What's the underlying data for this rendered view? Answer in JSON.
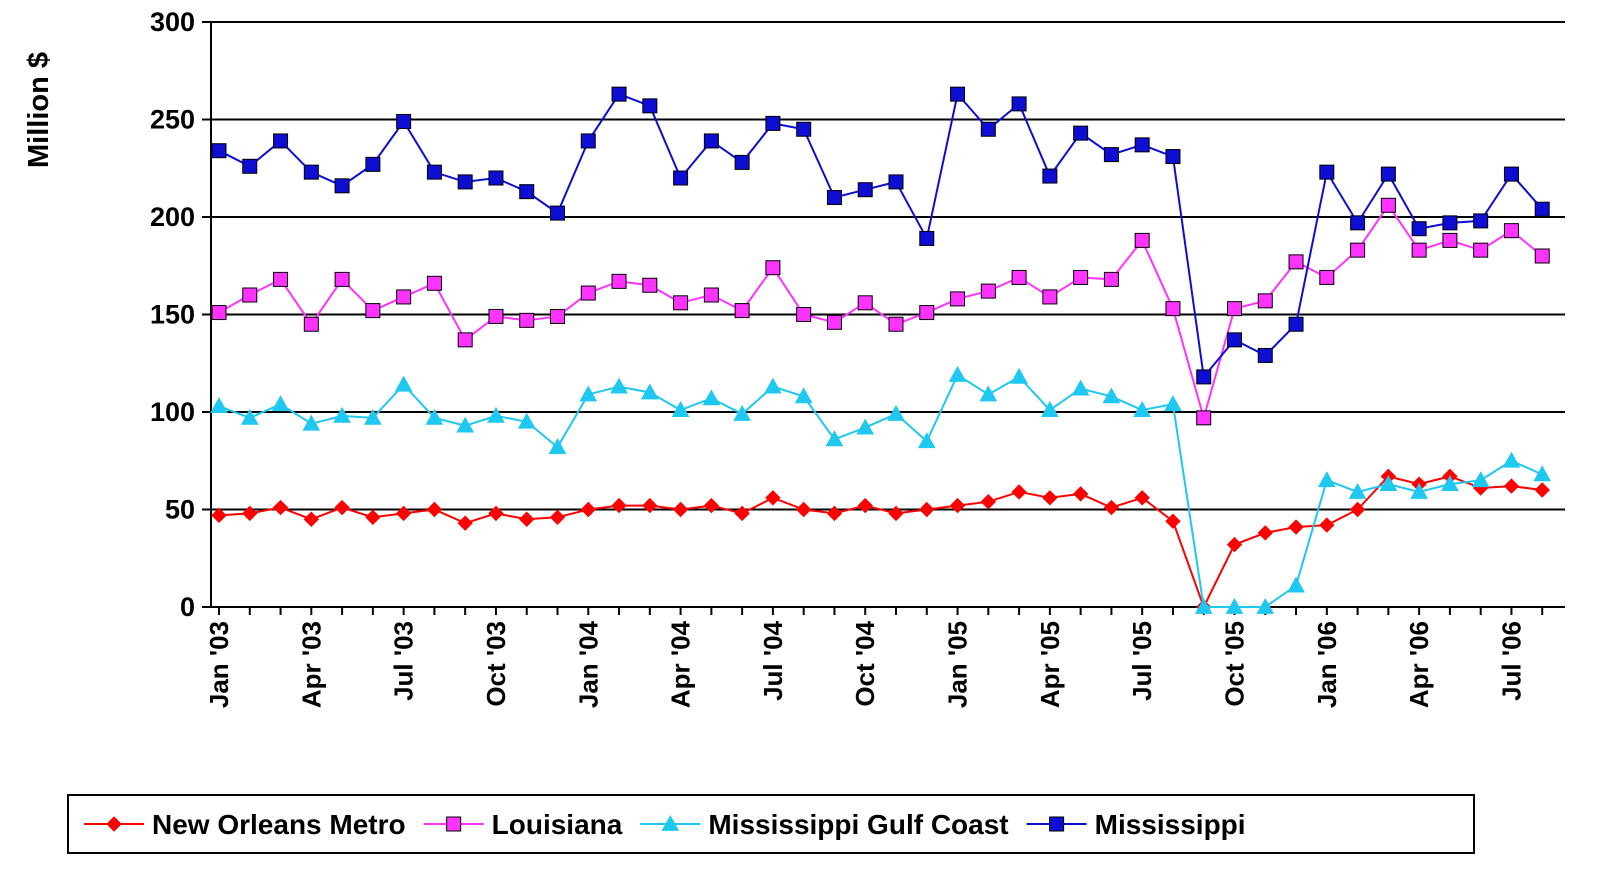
{
  "chart_data": {
    "type": "line",
    "ylabel": "Million $",
    "xlabel": "",
    "ylim": [
      0,
      300
    ],
    "yticks": [
      "0",
      "50",
      "100",
      "150",
      "200",
      "250",
      "300"
    ],
    "grid": "horizontal",
    "legend_position": "bottom",
    "x": [
      "Jan '03",
      "Feb '03",
      "Mar '03",
      "Apr '03",
      "May '03",
      "Jun '03",
      "Jul '03",
      "Aug '03",
      "Sep '03",
      "Oct '03",
      "Nov '03",
      "Dec '03",
      "Jan '04",
      "Feb '04",
      "Mar '04",
      "Apr '04",
      "May '04",
      "Jun '04",
      "Jul '04",
      "Aug '04",
      "Sep '04",
      "Oct '04",
      "Nov '04",
      "Dec '04",
      "Jan '05",
      "Feb '05",
      "Mar '05",
      "Apr '05",
      "May '05",
      "Jun '05",
      "Jul '05",
      "Aug '05",
      "Sep '05",
      "Oct '05",
      "Nov '05",
      "Dec '05",
      "Jan '06",
      "Feb '06",
      "Mar '06",
      "Apr '06",
      "May '06",
      "Jun '06",
      "Jul '06",
      "Aug '06"
    ],
    "xtick_labels": [
      "Jan '03",
      "Apr '03",
      "Jul '03",
      "Oct '03",
      "Jan '04",
      "Apr '04",
      "Jul '04",
      "Oct '04",
      "Jan '05",
      "Apr '05",
      "Jul '05",
      "Oct '05",
      "Jan '06",
      "Apr '06",
      "Jul '06"
    ],
    "series": [
      {
        "name": "New Orleans Metro",
        "color": "#ff0000",
        "marker": "diamond",
        "values": [
          47,
          48,
          51,
          45,
          51,
          46,
          48,
          50,
          43,
          48,
          45,
          46,
          50,
          52,
          52,
          50,
          52,
          48,
          56,
          50,
          48,
          52,
          48,
          50,
          52,
          54,
          59,
          56,
          58,
          51,
          56,
          44,
          0,
          32,
          38,
          41,
          42,
          50,
          67,
          63,
          67,
          61,
          62,
          60
        ]
      },
      {
        "name": "Louisiana",
        "color": "#ff33ff",
        "marker": "square",
        "values": [
          151,
          160,
          168,
          145,
          168,
          152,
          159,
          166,
          137,
          149,
          147,
          149,
          161,
          167,
          165,
          156,
          160,
          152,
          174,
          150,
          146,
          156,
          145,
          151,
          158,
          162,
          169,
          159,
          169,
          168,
          188,
          153,
          97,
          153,
          157,
          177,
          169,
          183,
          206,
          183,
          188,
          183,
          193,
          180
        ]
      },
      {
        "name": "Mississippi Gulf Coast",
        "color": "#1ec8f0",
        "marker": "triangle",
        "values": [
          103,
          97,
          104,
          94,
          98,
          97,
          114,
          97,
          93,
          98,
          95,
          82,
          109,
          113,
          110,
          101,
          107,
          99,
          113,
          108,
          86,
          92,
          99,
          85,
          119,
          109,
          118,
          101,
          112,
          108,
          101,
          104,
          0,
          0,
          0,
          11,
          65,
          59,
          63,
          59,
          63,
          65,
          75,
          68
        ]
      },
      {
        "name": "Mississippi",
        "color": "#0d0dd4",
        "marker": "square",
        "values": [
          234,
          226,
          239,
          223,
          216,
          227,
          249,
          223,
          218,
          220,
          213,
          202,
          239,
          263,
          257,
          220,
          239,
          228,
          248,
          245,
          210,
          214,
          218,
          189,
          263,
          245,
          258,
          221,
          243,
          232,
          237,
          231,
          118,
          137,
          129,
          145,
          223,
          197,
          222,
          194,
          197,
          198,
          222,
          204
        ]
      }
    ]
  }
}
